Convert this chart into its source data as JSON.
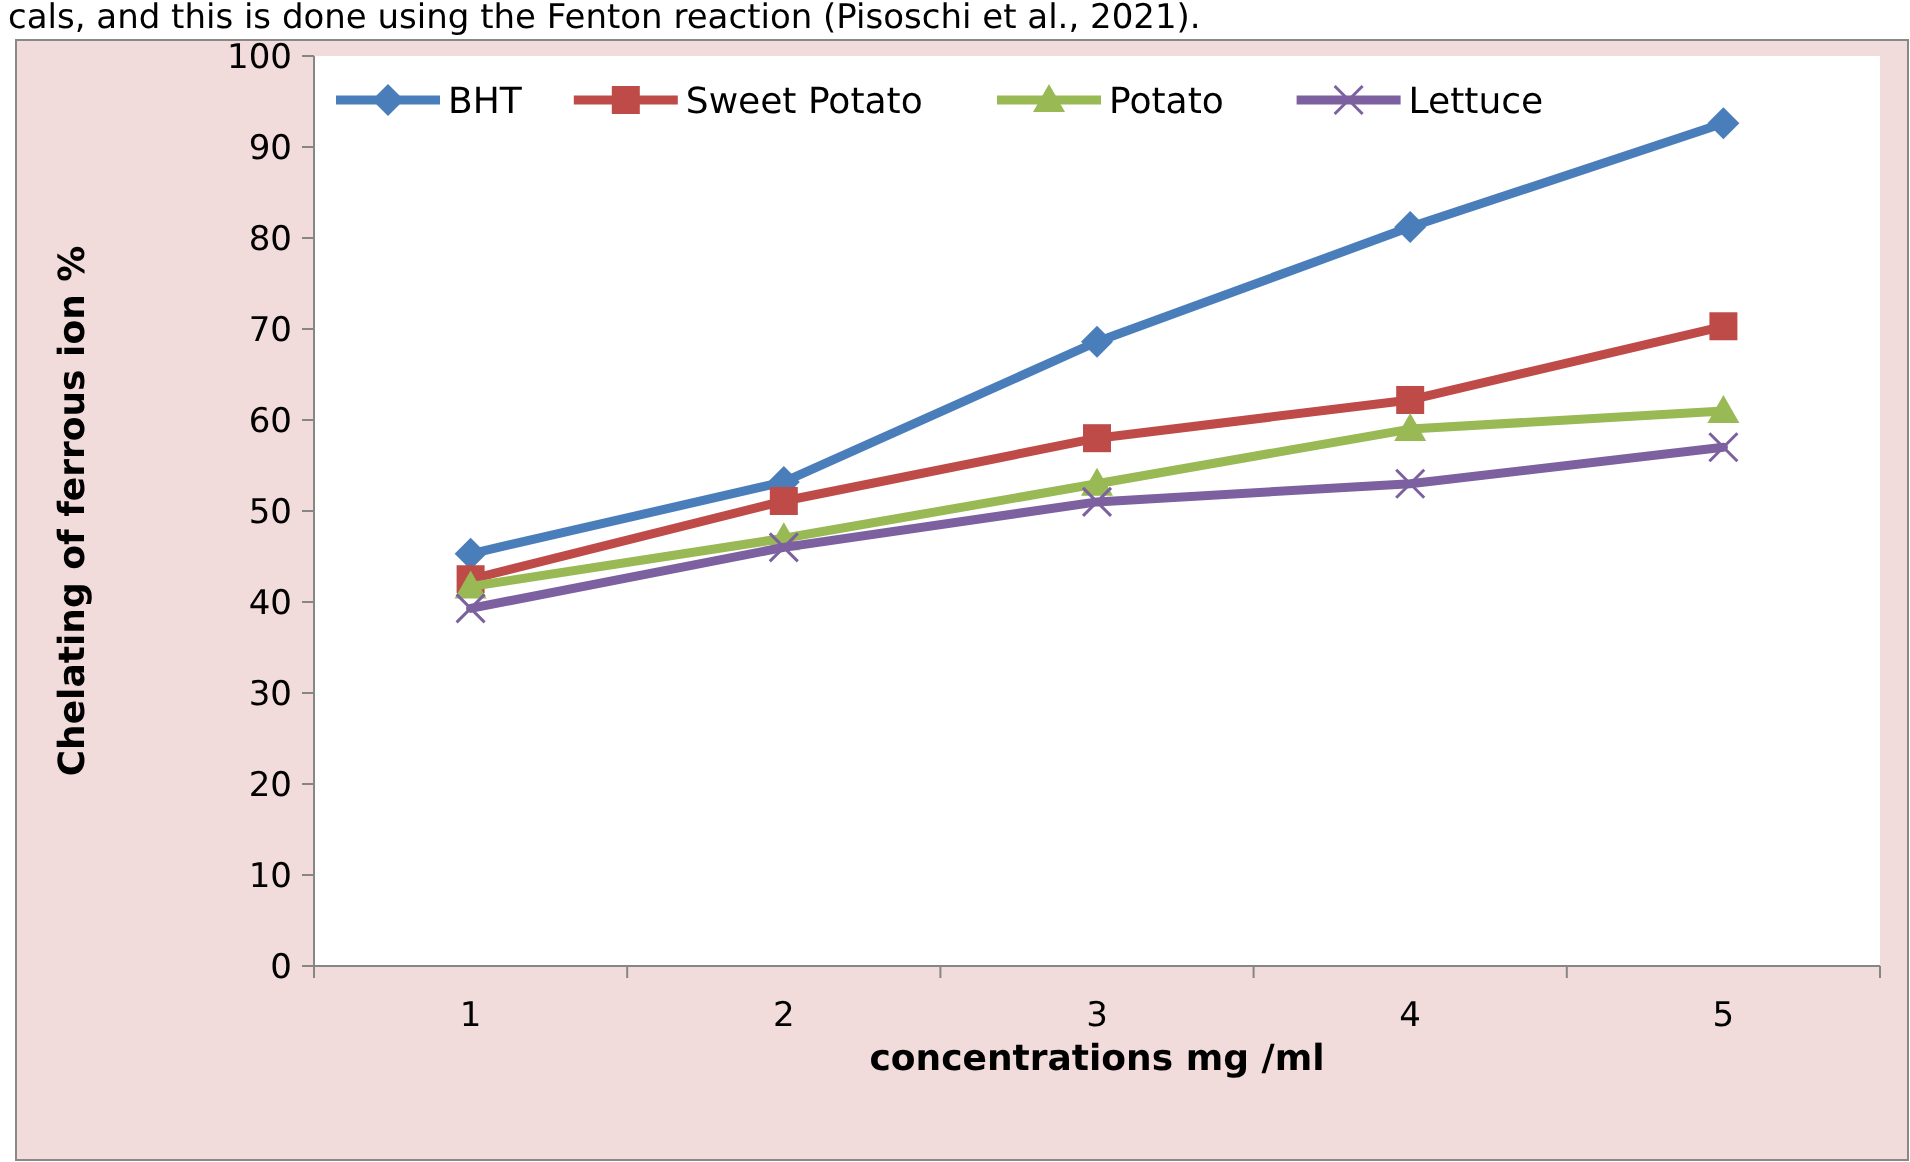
{
  "chart_data": {
    "type": "line",
    "xlabel": "concentrations mg /ml",
    "ylabel": "Chelating of ferrous ion %",
    "annotations": [
      "cals, and this is done using the Fenton reaction (Pisoschi et al., 2021)."
    ],
    "categories": [
      "1",
      "2",
      "3",
      "4",
      "5"
    ],
    "series": [
      {
        "name": "BHT",
        "color": "#4a7ebb",
        "marker": "diamond",
        "values": [
          45.3,
          53.2,
          68.6,
          81.2,
          92.6
        ]
      },
      {
        "name": "Sweet Potato",
        "color": "#be4b48",
        "marker": "square",
        "values": [
          42.5,
          51.1,
          58,
          62.2,
          70.3
        ]
      },
      {
        "name": "Potato",
        "color": "#98b954",
        "marker": "triangle",
        "values": [
          41.7,
          47,
          53,
          59,
          61
        ]
      },
      {
        "name": "Lettuce",
        "color": "#7d60a0",
        "marker": "cross",
        "values": [
          39.3,
          46,
          51,
          53,
          57
        ]
      }
    ],
    "ylim": [
      0,
      100
    ],
    "yticks": [
      0,
      10,
      20,
      30,
      40,
      50,
      60,
      70,
      80,
      90,
      100
    ],
    "grid": false,
    "legend": "top"
  }
}
